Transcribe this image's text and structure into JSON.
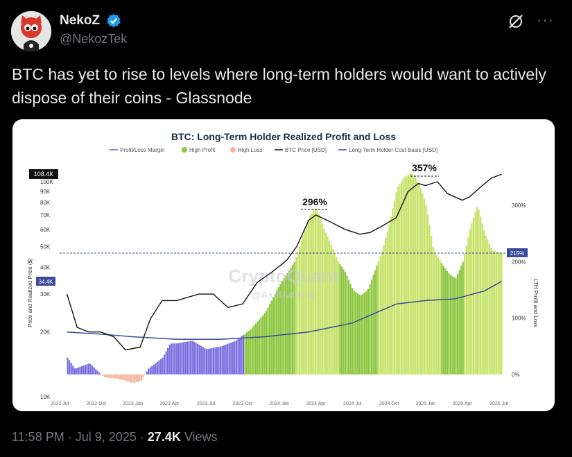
{
  "author": {
    "name": "NekoZ",
    "handle": "@NekozTek"
  },
  "tweet_text": "BTC has yet to rise to levels where long-term holders would want to actively dispose of their coins - Glassnode",
  "footer": {
    "time": "11:58 PM",
    "date": "Jul 9, 2025",
    "views_count": "27.4K",
    "views_label": "Views"
  },
  "chart_data": {
    "type": "area",
    "title": "BTC: Long-Term Holder Realized Profit and Loss",
    "legend": [
      "Profit/Loss Margin",
      "High Profit",
      "High Loss",
      "BTC Price [USD]",
      "Long-Term Holder Cost Basis [USD]"
    ],
    "x_ticks": [
      "2022 Jul",
      "2022 Oct",
      "2023 Jan",
      "2023 Apr",
      "2023 Jul",
      "2023 Oct",
      "2024 Jan",
      "2024 Apr",
      "2024 Jul",
      "2024 Oct",
      "2025 Jan",
      "2025 Apr",
      "2025 Jul"
    ],
    "y_left_label": "Price and Realized Price ($)",
    "y_left_ticks": [
      "100K",
      "90K",
      "80K",
      "70K",
      "60K",
      "50K",
      "40K",
      "30K",
      "20K",
      "10K"
    ],
    "y_right_label": "LTH Profit and Loss",
    "y_right_ticks": [
      "300%",
      "200%",
      "100%",
      "0%"
    ],
    "annotations": [
      "296%",
      "357%"
    ],
    "markers": {
      "btc_price": "108.4K",
      "cost_basis": "34.4K",
      "current_margin": "215%"
    },
    "watermark": [
      "CryptoQuant",
      "@AxelAdlerJr"
    ],
    "series": [
      {
        "name": "BTC Price [USD]",
        "x": [
          2022.55,
          2022.62,
          2022.7,
          2022.78,
          2022.87,
          2022.95,
          2023.05,
          2023.12,
          2023.2,
          2023.3,
          2023.45,
          2023.55,
          2023.65,
          2023.75,
          2023.85,
          2023.95,
          2024.05,
          2024.12,
          2024.2,
          2024.25,
          2024.35,
          2024.45,
          2024.55,
          2024.62,
          2024.7,
          2024.8,
          2024.88,
          2024.95,
          2025.0,
          2025.08,
          2025.15,
          2025.25,
          2025.3,
          2025.38,
          2025.45,
          2025.52
        ],
        "values": [
          30,
          21,
          20,
          20,
          19,
          16.5,
          17,
          23,
          28,
          28,
          30,
          30,
          26,
          27,
          34,
          38,
          43,
          50,
          66,
          70,
          65,
          60,
          57,
          58,
          62,
          68,
          90,
          98,
          96,
          100,
          88,
          82,
          85,
          95,
          104,
          108.4
        ]
      },
      {
        "name": "Long-Term Holder Cost Basis [USD]",
        "x": [
          2022.55,
          2022.8,
          2023.0,
          2023.3,
          2023.6,
          2023.9,
          2024.2,
          2024.5,
          2024.8,
          2025.0,
          2025.2,
          2025.4,
          2025.52
        ],
        "values": [
          20,
          19.5,
          19,
          18.5,
          18.5,
          19,
          20,
          22,
          27,
          28,
          28.5,
          31,
          34.4
        ]
      },
      {
        "name": "Profit/Loss Margin",
        "x": [
          2022.55,
          2022.6,
          2022.7,
          2022.8,
          2022.9,
          2023.0,
          2023.05,
          2023.1,
          2023.15,
          2023.2,
          2023.25,
          2023.3,
          2023.4,
          2023.5,
          2023.6,
          2023.7,
          2023.8,
          2023.9,
          2024.0,
          2024.1,
          2024.2,
          2024.25,
          2024.3,
          2024.35,
          2024.4,
          2024.45,
          2024.5,
          2024.55,
          2024.6,
          2024.7,
          2024.75,
          2024.8,
          2024.85,
          2024.9,
          2024.95,
          2025.0,
          2025.05,
          2025.1,
          2025.15,
          2025.2,
          2025.25,
          2025.3,
          2025.35,
          2025.4,
          2025.45,
          2025.52
        ],
        "values": [
          30,
          10,
          20,
          -5,
          -8,
          -15,
          -12,
          10,
          20,
          30,
          55,
          55,
          60,
          45,
          50,
          60,
          80,
          110,
          160,
          200,
          280,
          296,
          260,
          230,
          200,
          180,
          150,
          140,
          150,
          220,
          270,
          330,
          350,
          357,
          340,
          300,
          220,
          200,
          180,
          170,
          200,
          260,
          300,
          250,
          220,
          215
        ]
      }
    ]
  }
}
